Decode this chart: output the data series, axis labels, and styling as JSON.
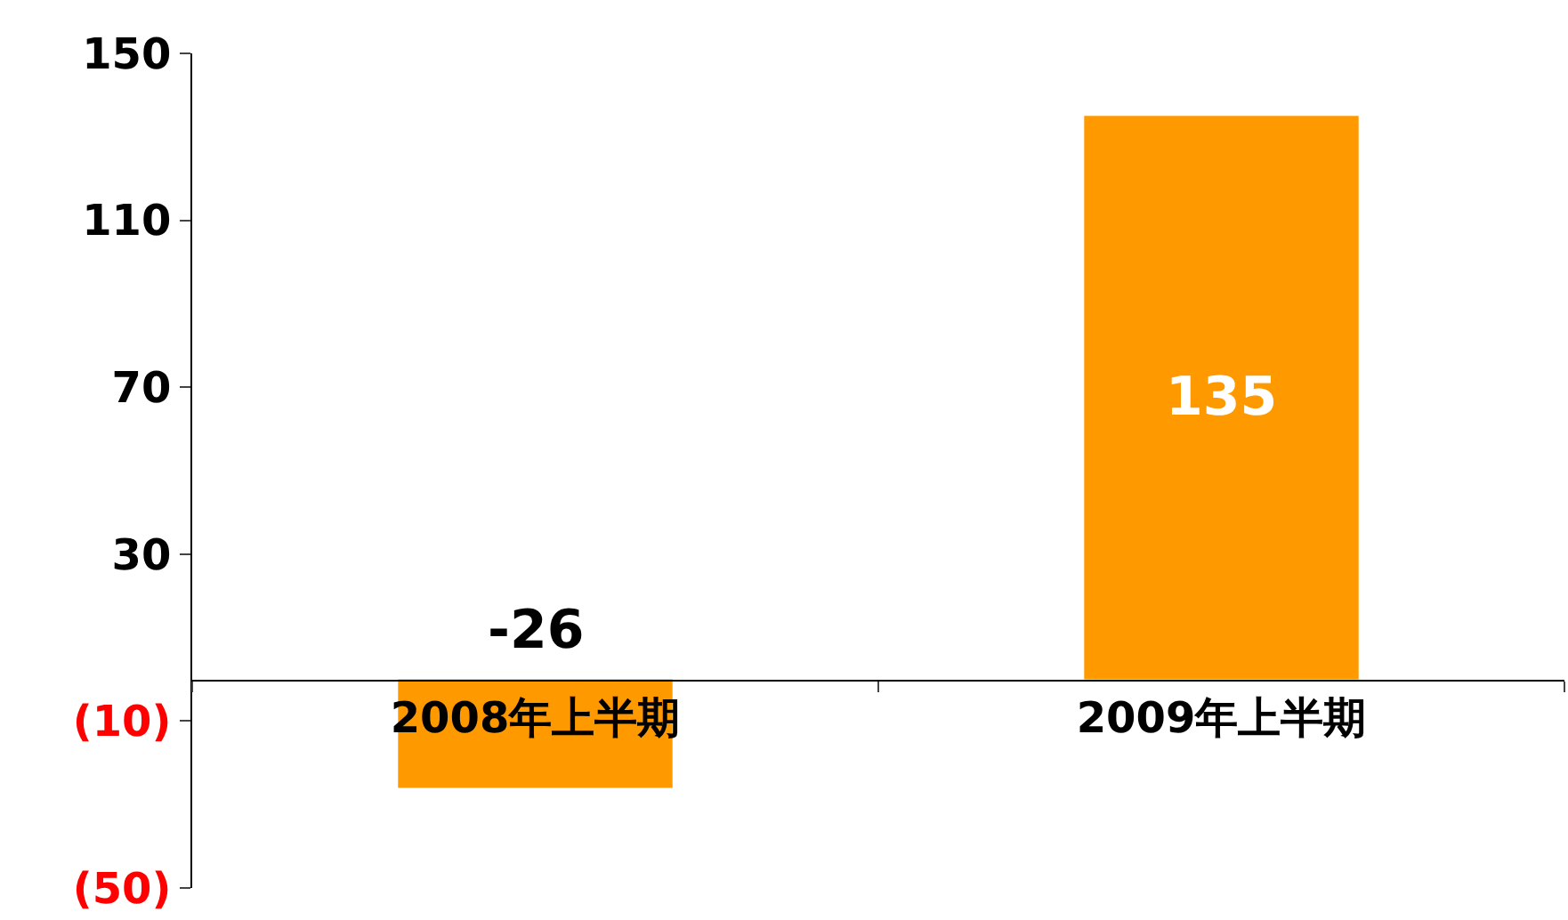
{
  "chart_data": {
    "type": "bar",
    "categories": [
      "2008年上半期",
      "2009年上半期"
    ],
    "values": [
      -26,
      135
    ],
    "color": "#ff9900",
    "data_labels": true,
    "ylim": [
      -50,
      150
    ],
    "yticks": [
      {
        "value": -50,
        "label": "(50)"
      },
      {
        "value": -10,
        "label": "(10)"
      },
      30,
      70,
      110,
      150
    ]
  }
}
